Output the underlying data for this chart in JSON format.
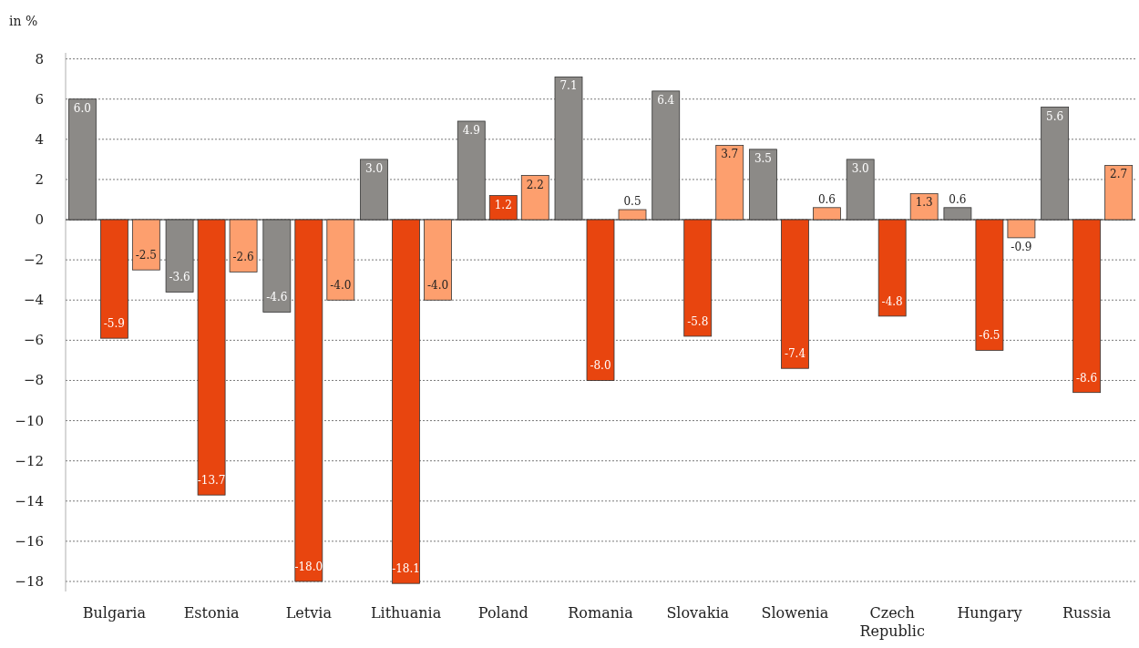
{
  "chart_data": {
    "type": "bar",
    "ylabel": "in %",
    "categories": [
      "Bulgaria",
      "Estonia",
      "Letvia",
      "Lithuania",
      "Poland",
      "Romania",
      "Slovakia",
      "Slowenia",
      "Czech Republic",
      "Hungary",
      "Russia"
    ],
    "series": [
      {
        "color": "#8c8a87",
        "values": [
          6.0,
          -3.6,
          -4.6,
          3.0,
          4.9,
          7.1,
          6.4,
          3.5,
          3.0,
          0.6,
          5.6
        ],
        "value_labels": [
          "6.0",
          "-3.6",
          "-4.6",
          "3.0",
          "4.9",
          "7.1",
          "6.4",
          "3.5",
          "3.0",
          "0.6",
          "5.6"
        ]
      },
      {
        "color": "#e8450f",
        "values": [
          -5.9,
          -13.7,
          -18.0,
          -18.1,
          1.2,
          -8.0,
          -5.8,
          -7.4,
          -4.8,
          -6.5,
          -8.6
        ],
        "value_labels": [
          "-5.9",
          "-13.7",
          "-18.0",
          "-18.1",
          "1.2",
          "-8.0",
          "-5.8",
          "-7.4",
          "-4.8",
          "-6.5",
          "-8.6"
        ]
      },
      {
        "color": "#fd9f6e",
        "values": [
          -2.5,
          -2.6,
          -4.0,
          -4.0,
          2.2,
          0.5,
          3.7,
          0.6,
          1.3,
          -0.9,
          2.7
        ],
        "value_labels": [
          "-2.5",
          "-2.6",
          "-4.0",
          "-4.0",
          "2.2",
          "0.5",
          "3.7",
          "0.6",
          "1.3",
          "-0.9",
          "2.7"
        ]
      }
    ],
    "ylim": [
      -18.5,
      8.3
    ],
    "yticks": [
      {
        "value": -18,
        "label": "−18"
      },
      {
        "value": -16,
        "label": "−16"
      },
      {
        "value": -14,
        "label": "−14"
      },
      {
        "value": -12,
        "label": "−12"
      },
      {
        "value": -10,
        "label": "−10"
      },
      {
        "value": -8,
        "label": "−8"
      },
      {
        "value": -6,
        "label": "−6"
      },
      {
        "value": -4,
        "label": "−4"
      },
      {
        "value": -2,
        "label": "−2"
      },
      0,
      2,
      4,
      6,
      8
    ],
    "grid": "y"
  }
}
